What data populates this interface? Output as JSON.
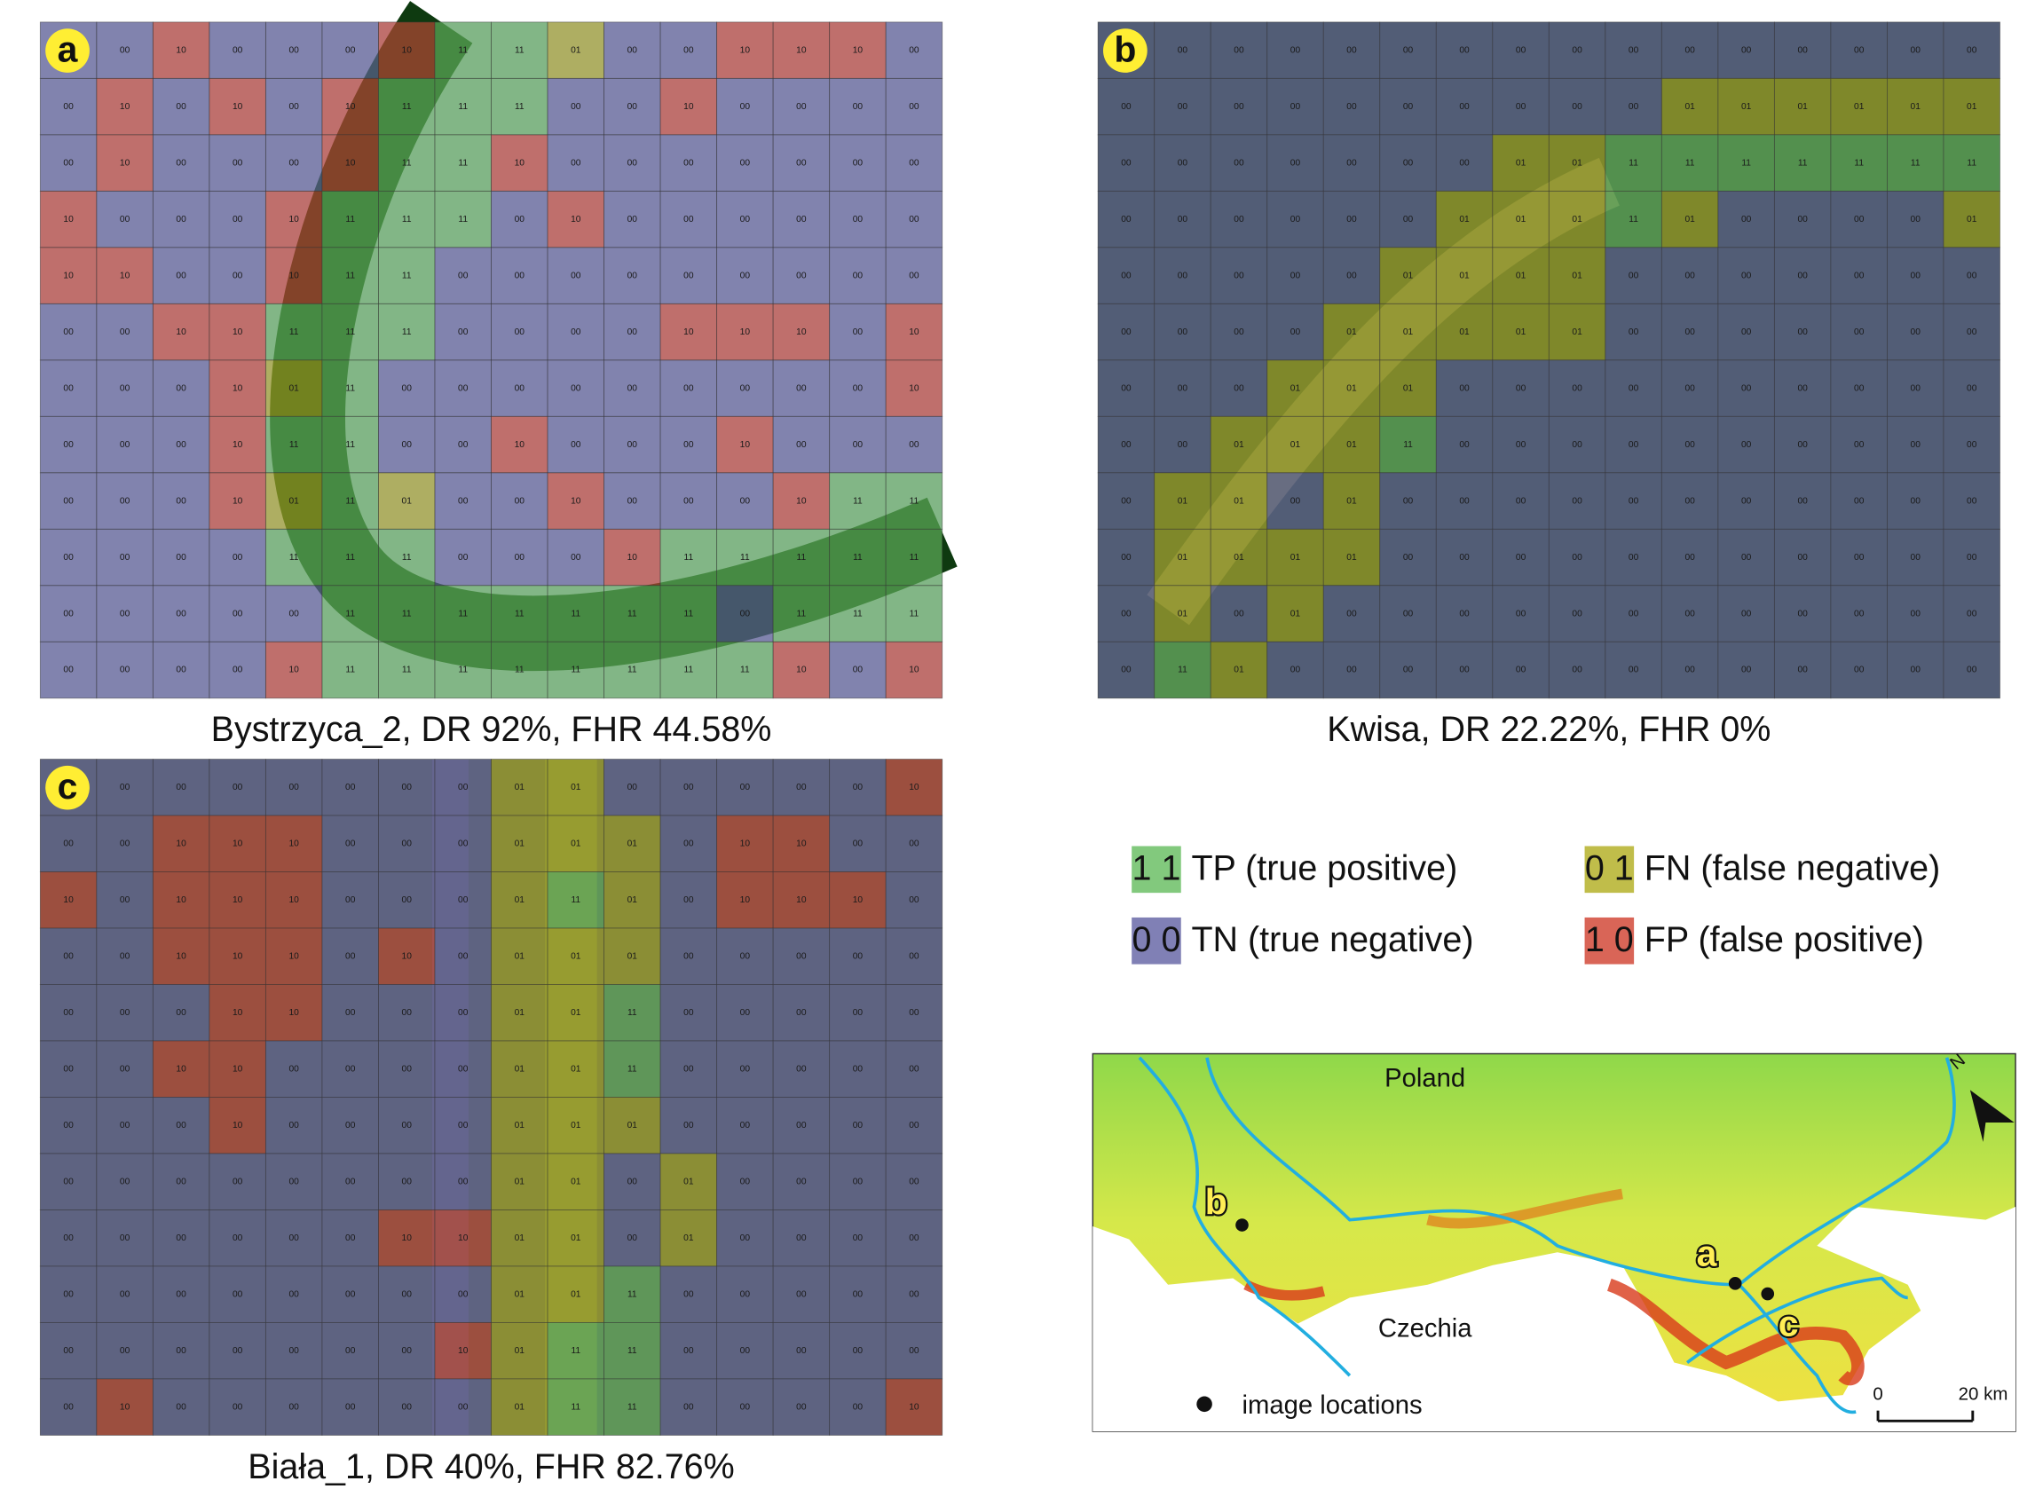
{
  "panels": [
    {
      "label": "a",
      "caption": "Bystrzyca_2, DR 92%, FHR 44.58%",
      "grid": [
        [
          "00",
          "00",
          "10",
          "00",
          "00",
          "00",
          "10",
          "11",
          "11",
          "01",
          "00",
          "00",
          "10",
          "10",
          "10",
          "00"
        ],
        [
          "00",
          "10",
          "00",
          "10",
          "00",
          "10",
          "11",
          "11",
          "11",
          "00",
          "00",
          "10",
          "00",
          "00",
          "00",
          "00"
        ],
        [
          "00",
          "10",
          "00",
          "00",
          "00",
          "10",
          "11",
          "11",
          "10",
          "00",
          "00",
          "00",
          "00",
          "00",
          "00",
          "00"
        ],
        [
          "10",
          "00",
          "00",
          "00",
          "10",
          "11",
          "11",
          "11",
          "00",
          "10",
          "00",
          "00",
          "00",
          "00",
          "00",
          "00"
        ],
        [
          "10",
          "10",
          "00",
          "00",
          "10",
          "11",
          "11",
          "00",
          "00",
          "00",
          "00",
          "00",
          "00",
          "00",
          "00",
          "00"
        ],
        [
          "00",
          "00",
          "10",
          "10",
          "11",
          "11",
          "11",
          "00",
          "00",
          "00",
          "00",
          "10",
          "10",
          "10",
          "00",
          "10"
        ],
        [
          "00",
          "00",
          "00",
          "10",
          "01",
          "11",
          "00",
          "00",
          "00",
          "00",
          "00",
          "00",
          "00",
          "00",
          "00",
          "10"
        ],
        [
          "00",
          "00",
          "00",
          "10",
          "11",
          "11",
          "00",
          "00",
          "10",
          "00",
          "00",
          "00",
          "10",
          "00",
          "00",
          "00"
        ],
        [
          "00",
          "00",
          "00",
          "10",
          "01",
          "11",
          "01",
          "00",
          "00",
          "10",
          "00",
          "00",
          "00",
          "10",
          "11",
          "11"
        ],
        [
          "00",
          "00",
          "00",
          "00",
          "11",
          "11",
          "11",
          "00",
          "00",
          "00",
          "10",
          "11",
          "11",
          "11",
          "11",
          "11"
        ],
        [
          "00",
          "00",
          "00",
          "00",
          "00",
          "11",
          "11",
          "11",
          "11",
          "11",
          "11",
          "11",
          "00",
          "11",
          "11",
          "11"
        ],
        [
          "00",
          "00",
          "00",
          "00",
          "10",
          "11",
          "11",
          "11",
          "11",
          "11",
          "11",
          "11",
          "11",
          "10",
          "00",
          "10"
        ]
      ]
    },
    {
      "label": "b",
      "caption": "Kwisa, DR 22.22%, FHR 0%",
      "grid": [
        [
          "00",
          "00",
          "00",
          "00",
          "00",
          "00",
          "00",
          "00",
          "00",
          "00",
          "00",
          "00",
          "00",
          "00",
          "00",
          "00"
        ],
        [
          "00",
          "00",
          "00",
          "00",
          "00",
          "00",
          "00",
          "00",
          "00",
          "00",
          "01",
          "01",
          "01",
          "01",
          "01",
          "01"
        ],
        [
          "00",
          "00",
          "00",
          "00",
          "00",
          "00",
          "00",
          "01",
          "01",
          "11",
          "11",
          "11",
          "11",
          "11",
          "11",
          "11"
        ],
        [
          "00",
          "00",
          "00",
          "00",
          "00",
          "00",
          "01",
          "01",
          "01",
          "11",
          "01",
          "00",
          "00",
          "00",
          "00",
          "01"
        ],
        [
          "00",
          "00",
          "00",
          "00",
          "00",
          "01",
          "01",
          "01",
          "01",
          "00",
          "00",
          "00",
          "00",
          "00",
          "00",
          "00"
        ],
        [
          "00",
          "00",
          "00",
          "00",
          "01",
          "01",
          "01",
          "01",
          "01",
          "00",
          "00",
          "00",
          "00",
          "00",
          "00",
          "00"
        ],
        [
          "00",
          "00",
          "00",
          "01",
          "01",
          "01",
          "00",
          "00",
          "00",
          "00",
          "00",
          "00",
          "00",
          "00",
          "00",
          "00"
        ],
        [
          "00",
          "00",
          "01",
          "01",
          "01",
          "11",
          "00",
          "00",
          "00",
          "00",
          "00",
          "00",
          "00",
          "00",
          "00",
          "00"
        ],
        [
          "00",
          "01",
          "01",
          "00",
          "01",
          "00",
          "00",
          "00",
          "00",
          "00",
          "00",
          "00",
          "00",
          "00",
          "00",
          "00"
        ],
        [
          "00",
          "01",
          "01",
          "01",
          "01",
          "00",
          "00",
          "00",
          "00",
          "00",
          "00",
          "00",
          "00",
          "00",
          "00",
          "00"
        ],
        [
          "00",
          "01",
          "00",
          "01",
          "00",
          "00",
          "00",
          "00",
          "00",
          "00",
          "00",
          "00",
          "00",
          "00",
          "00",
          "00"
        ],
        [
          "00",
          "11",
          "01",
          "00",
          "00",
          "00",
          "00",
          "00",
          "00",
          "00",
          "00",
          "00",
          "00",
          "00",
          "00",
          "00"
        ]
      ]
    },
    {
      "label": "c",
      "caption": "Biała_1, DR 40%, FHR 82.76%",
      "grid": [
        [
          "00",
          "00",
          "00",
          "00",
          "00",
          "00",
          "00",
          "00",
          "01",
          "01",
          "00",
          "00",
          "00",
          "00",
          "00",
          "10"
        ],
        [
          "00",
          "00",
          "10",
          "10",
          "10",
          "00",
          "00",
          "00",
          "01",
          "01",
          "01",
          "00",
          "10",
          "10",
          "00",
          "00"
        ],
        [
          "10",
          "00",
          "10",
          "10",
          "10",
          "00",
          "00",
          "00",
          "01",
          "11",
          "01",
          "00",
          "10",
          "10",
          "10",
          "00"
        ],
        [
          "00",
          "00",
          "10",
          "10",
          "10",
          "00",
          "10",
          "00",
          "01",
          "01",
          "01",
          "00",
          "00",
          "00",
          "00",
          "00"
        ],
        [
          "00",
          "00",
          "00",
          "10",
          "10",
          "00",
          "00",
          "00",
          "01",
          "01",
          "11",
          "00",
          "00",
          "00",
          "00",
          "00"
        ],
        [
          "00",
          "00",
          "10",
          "10",
          "00",
          "00",
          "00",
          "00",
          "01",
          "01",
          "11",
          "00",
          "00",
          "00",
          "00",
          "00"
        ],
        [
          "00",
          "00",
          "00",
          "10",
          "00",
          "00",
          "00",
          "00",
          "01",
          "01",
          "01",
          "00",
          "00",
          "00",
          "00",
          "00"
        ],
        [
          "00",
          "00",
          "00",
          "00",
          "00",
          "00",
          "00",
          "00",
          "01",
          "01",
          "00",
          "01",
          "00",
          "00",
          "00",
          "00"
        ],
        [
          "00",
          "00",
          "00",
          "00",
          "00",
          "00",
          "10",
          "10",
          "01",
          "01",
          "00",
          "01",
          "00",
          "00",
          "00",
          "00"
        ],
        [
          "00",
          "00",
          "00",
          "00",
          "00",
          "00",
          "00",
          "00",
          "01",
          "01",
          "11",
          "00",
          "00",
          "00",
          "00",
          "00"
        ],
        [
          "00",
          "00",
          "00",
          "00",
          "00",
          "00",
          "00",
          "10",
          "01",
          "11",
          "11",
          "00",
          "00",
          "00",
          "00",
          "00"
        ],
        [
          "00",
          "10",
          "00",
          "00",
          "00",
          "00",
          "00",
          "00",
          "01",
          "11",
          "11",
          "00",
          "00",
          "00",
          "00",
          "10"
        ]
      ]
    }
  ],
  "legend": [
    {
      "code": "1 1",
      "label": "TP (true positive)",
      "color": "#6cbf66"
    },
    {
      "code": "0 1",
      "label": "FN (false negative)",
      "color": "#b5b22a"
    },
    {
      "code": "0 0",
      "label": "TN (true negative)",
      "color": "#6a6aa8"
    },
    {
      "code": "1 0",
      "label": "FP (false positive)",
      "color": "#d24a3a"
    }
  ],
  "map": {
    "countries": [
      "Poland",
      "Czechia"
    ],
    "sites": [
      "b",
      "a",
      "c"
    ],
    "legend": "image locations",
    "scale": [
      "0",
      "20 km"
    ],
    "north": "N"
  }
}
